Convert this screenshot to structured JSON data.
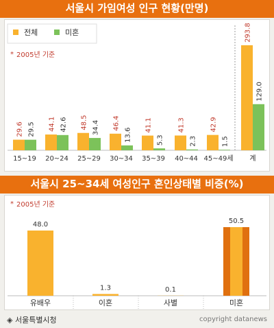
{
  "chart_data": [
    {
      "type": "bar",
      "title": "서울시 가임여성 인구 현황(만명)",
      "note": "2005년 기준",
      "categories": [
        "15~19",
        "20~24",
        "25~29",
        "30~34",
        "35~39",
        "40~44",
        "45~49세",
        "계"
      ],
      "series": [
        {
          "name": "전체",
          "color": "#f9b22e",
          "values": [
            29.6,
            44.1,
            48.5,
            46.4,
            41.1,
            41.3,
            42.9,
            293.8
          ],
          "labels": [
            "29.6",
            "44.1",
            "48.5",
            "46.4",
            "41.1",
            "41.3",
            "42.9",
            "293.8"
          ]
        },
        {
          "name": "미혼",
          "color": "#7cc25a",
          "values": [
            29.5,
            42.6,
            34.4,
            13.6,
            5.3,
            2.3,
            1.5,
            129.0
          ],
          "labels": [
            "29.5",
            "42.6",
            "34.4",
            "13.6",
            "5.3",
            "2.3",
            "1.5",
            "129.0"
          ]
        }
      ]
    },
    {
      "type": "bar",
      "title": "서울시 25~34세 여성인구 혼인상태별 비중(%)",
      "note": "2005년 기준",
      "categories": [
        "유배우",
        "이혼",
        "사별",
        "미혼"
      ],
      "series": [
        {
          "values": [
            48.0,
            1.3,
            0.1,
            50.5
          ],
          "labels": [
            "48.0",
            "1.3",
            "0.1",
            "50.5"
          ]
        }
      ],
      "colors": [
        "#f9b22e",
        "#f9b22e",
        "#f9b22e",
        "#f9b22e"
      ],
      "highlight_color": "#e0700f",
      "highlight_index": 3
    }
  ],
  "footer": {
    "source": "◈ 서울특별시청",
    "copyright": "copyright datanews"
  }
}
